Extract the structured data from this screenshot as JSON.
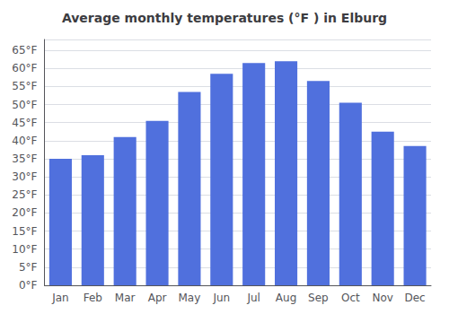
{
  "chart_data": {
    "type": "bar",
    "title": "Average monthly temperatures (°F ) in Elburg",
    "categories": [
      "Jan",
      "Feb",
      "Mar",
      "Apr",
      "May",
      "Jun",
      "Jul",
      "Aug",
      "Sep",
      "Oct",
      "Nov",
      "Dec"
    ],
    "values": [
      35,
      36,
      41,
      45.5,
      53.5,
      58.5,
      61.5,
      62,
      56.5,
      50.5,
      42.5,
      38.5
    ],
    "ylim": [
      0,
      68
    ],
    "yticks": [
      {
        "value": 0,
        "label": "0°F"
      },
      {
        "value": 5,
        "label": "5°F"
      },
      {
        "value": 10,
        "label": "10°F"
      },
      {
        "value": 15,
        "label": "15°F"
      },
      {
        "value": 20,
        "label": "20°F"
      },
      {
        "value": 25,
        "label": "25°F"
      },
      {
        "value": 30,
        "label": "30°F"
      },
      {
        "value": 35,
        "label": "35°F"
      },
      {
        "value": 40,
        "label": "40°F"
      },
      {
        "value": 45,
        "label": "45°F"
      },
      {
        "value": 50,
        "label": "50°F"
      },
      {
        "value": 55,
        "label": "55°F"
      },
      {
        "value": 60,
        "label": "60°F"
      },
      {
        "value": 65,
        "label": "65°F"
      }
    ],
    "grid": true
  }
}
